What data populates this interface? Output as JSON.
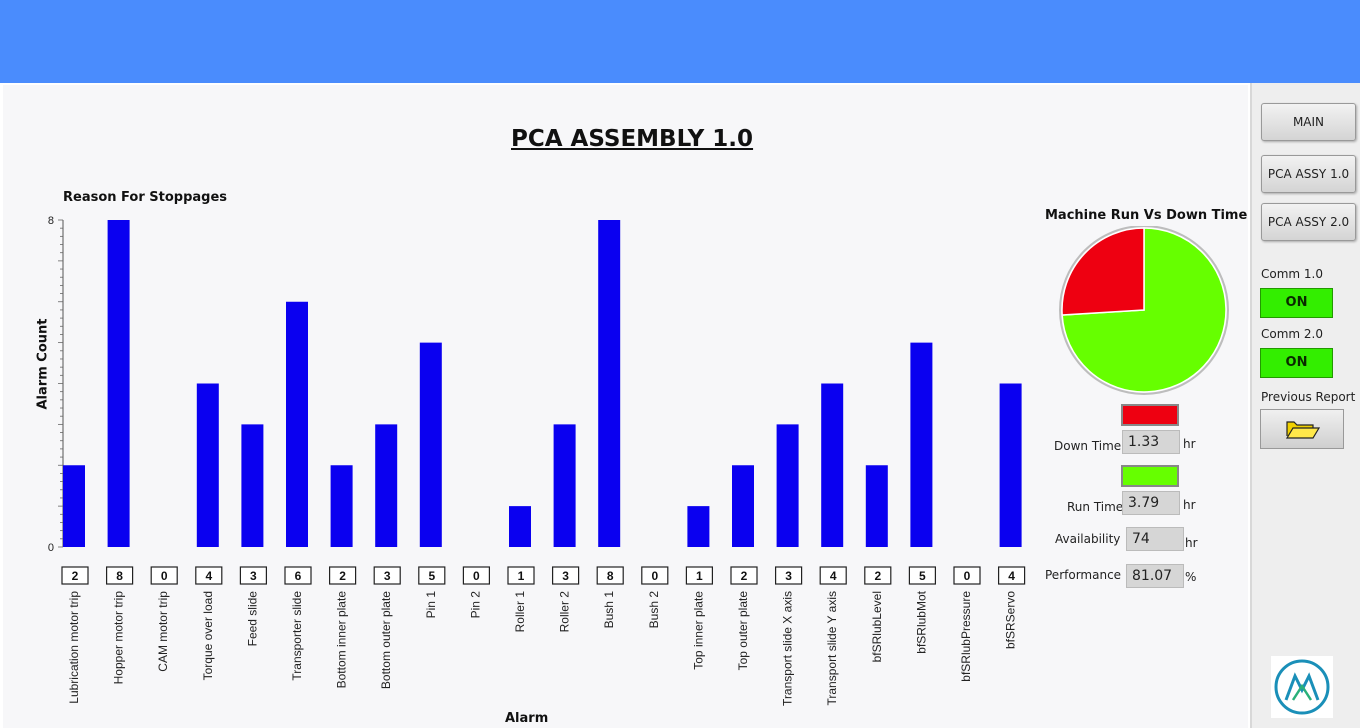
{
  "header": {
    "title": "PCA ASSEMBLY 1.0"
  },
  "chart_data": {
    "type": "bar",
    "title": "Reason For Stoppages",
    "xlabel": "Alarm",
    "ylabel": "Alarm Count",
    "ylim": [
      0,
      8
    ],
    "y_ticks": [
      "0",
      "8"
    ],
    "categories": [
      "Lubrication motor trip",
      "Hopper motor trip",
      "CAM motor trip",
      "Torque over load",
      "Feed slide",
      "Transporter slide",
      "Bottom inner plate",
      "Bottom outer plate",
      "Pin 1",
      "Pin 2",
      "Roller 1",
      "Roller 2",
      "Bush 1",
      "Bush 2",
      "Top inner plate",
      "Top outer plate",
      "Transport slide X axis",
      "Transport slide Y axis",
      "bfSRlubLevel",
      "bfSRlubMot",
      "bfSRlubPressure",
      "bfSRServo"
    ],
    "values": [
      2,
      8,
      0,
      4,
      3,
      6,
      2,
      3,
      5,
      0,
      1,
      3,
      8,
      0,
      1,
      2,
      3,
      4,
      2,
      5,
      0,
      4
    ],
    "value_labels": [
      "2",
      "8",
      "0",
      "4",
      "3",
      "6",
      "2",
      "3",
      "5",
      "0",
      "1",
      "3",
      "8",
      "0",
      "1",
      "2",
      "3",
      "4",
      "2",
      "5",
      "0",
      "4"
    ],
    "bar_color": "#0a00f0",
    "grid": false
  },
  "run_vs_down": {
    "title": "Machine Run Vs Down Time",
    "down_color": "#ee0011",
    "run_color": "#66ff00",
    "down_time_label": "Down Time",
    "down_time_value": "1.33",
    "down_time_unit": "hr",
    "run_time_label": "Run Time",
    "run_time_value": "3.79",
    "run_time_unit": "hr",
    "availability_label": "Availability",
    "availability_value": "74",
    "availability_unit": "hr",
    "performance_label": "Performance",
    "performance_value": "81.07",
    "performance_unit": "%",
    "pie_data": {
      "type": "pie",
      "slices": [
        {
          "name": "Down Time",
          "value": 1.33
        },
        {
          "name": "Run Time",
          "value": 3.79
        }
      ]
    }
  },
  "nav": {
    "main_label": "MAIN",
    "assy1_label": "PCA ASSY 1.0",
    "assy2_label": "PCA ASSY 2.0"
  },
  "comm": {
    "comm1_label": "Comm 1.0",
    "comm1_status": "ON",
    "comm2_label": "Comm 2.0",
    "comm2_status": "ON"
  },
  "previous_report": {
    "label": "Previous Report",
    "icon": "folder-open-icon"
  },
  "logo": {
    "icon": "company-logo-icon"
  }
}
